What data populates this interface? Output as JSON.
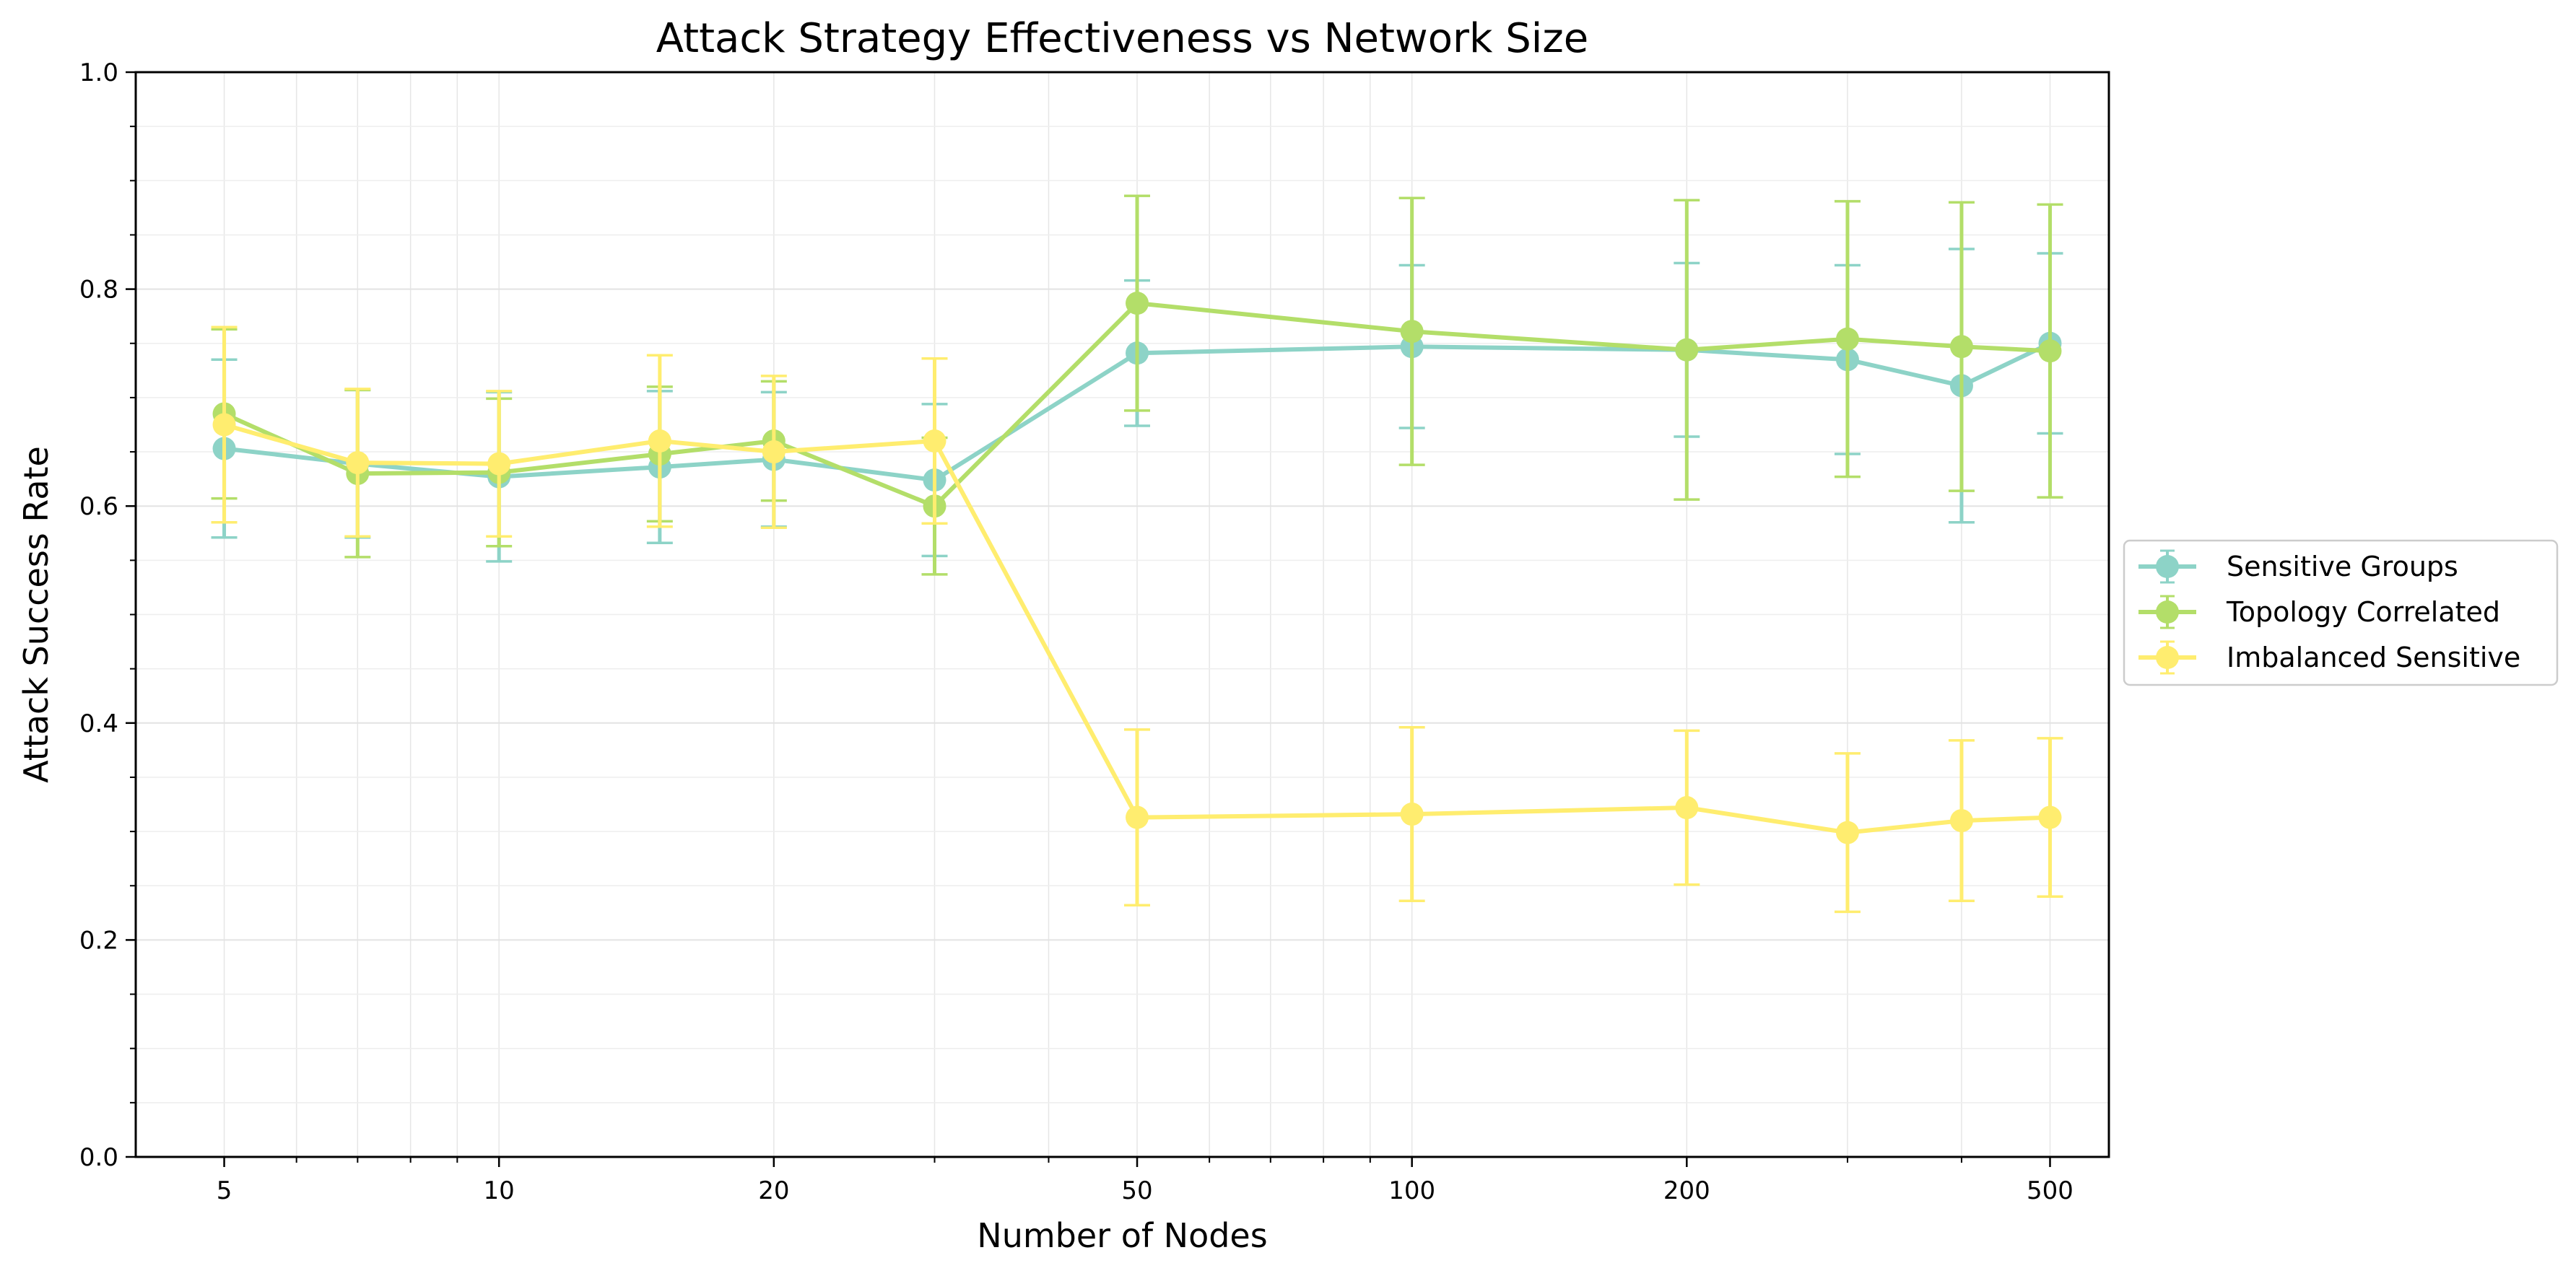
{
  "chart_data": {
    "type": "line",
    "title": "Attack Strategy Effectiveness vs Network Size",
    "xlabel": "Number of Nodes",
    "ylabel": "Attack Success Rate",
    "x_scale": "log",
    "xlim": [
      4,
      580
    ],
    "ylim": [
      0,
      1
    ],
    "x_ticks": [
      5,
      10,
      20,
      50,
      100,
      200,
      500
    ],
    "x_tick_labels": [
      "5",
      "10",
      "20",
      "50",
      "100",
      "200",
      "500"
    ],
    "y_ticks": [
      0,
      0.2,
      0.4,
      0.6,
      0.8,
      1.0
    ],
    "y_tick_labels": [
      "0.0",
      "0.2",
      "0.4",
      "0.6",
      "0.8",
      "1.0"
    ],
    "grid": true,
    "legend_position": "outside-right",
    "x": [
      5,
      7,
      10,
      15,
      20,
      30,
      50,
      100,
      200,
      300,
      400,
      500
    ],
    "series": [
      {
        "name": "Sensitive Groups",
        "color": "#8dd3c7",
        "values": [
          0.653,
          0.639,
          0.627,
          0.636,
          0.643,
          0.624,
          0.741,
          0.747,
          0.744,
          0.735,
          0.711,
          0.75
        ],
        "errors": [
          0.082,
          0.068,
          0.078,
          0.07,
          0.062,
          0.07,
          0.067,
          0.075,
          0.08,
          0.087,
          0.126,
          0.083
        ]
      },
      {
        "name": "Topology Correlated",
        "color": "#b3de69",
        "values": [
          0.685,
          0.63,
          0.631,
          0.648,
          0.66,
          0.6,
          0.787,
          0.761,
          0.744,
          0.754,
          0.747,
          0.743
        ],
        "errors": [
          0.078,
          0.077,
          0.068,
          0.062,
          0.055,
          0.063,
          0.099,
          0.123,
          0.138,
          0.127,
          0.133,
          0.135
        ]
      },
      {
        "name": "Imbalanced Sensitive",
        "color": "#ffed6f",
        "values": [
          0.675,
          0.64,
          0.639,
          0.66,
          0.65,
          0.66,
          0.313,
          0.316,
          0.322,
          0.299,
          0.31,
          0.313
        ],
        "errors": [
          0.09,
          0.068,
          0.067,
          0.079,
          0.07,
          0.076,
          0.081,
          0.08,
          0.071,
          0.073,
          0.074,
          0.073
        ]
      }
    ]
  }
}
